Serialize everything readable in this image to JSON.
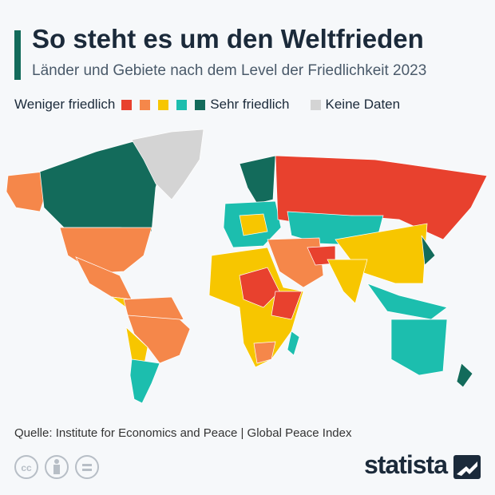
{
  "header": {
    "title": "So steht es um den Weltfrieden",
    "subtitle": "Länder und Gebiete nach dem Level der Friedlichkeit 2023"
  },
  "legend": {
    "low_label": "Weniger friedlich",
    "high_label": "Sehr friedlich",
    "no_data_label": "Keine Daten",
    "colors": [
      "#e8412e",
      "#f5874a",
      "#f7c600",
      "#1cbeae",
      "#136b5b"
    ],
    "no_data_color": "#d4d4d4"
  },
  "footer": {
    "source": "Quelle: Institute for Economics and Peace | Global Peace Index",
    "brand": "statista"
  }
}
